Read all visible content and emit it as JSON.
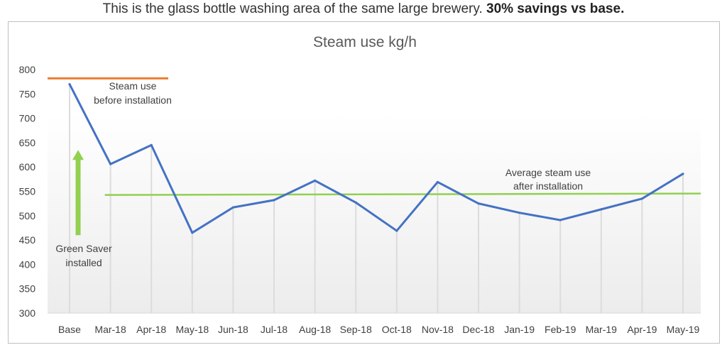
{
  "caption": {
    "text": "This is the glass bottle washing area of the same large brewery. ",
    "bold": "30% savings vs base."
  },
  "chart_data": {
    "type": "line",
    "title": "Steam use kg/h",
    "xlabel": "",
    "ylabel": "",
    "ylim": [
      300,
      800
    ],
    "yticks": [
      300,
      350,
      400,
      450,
      500,
      550,
      600,
      650,
      700,
      750,
      800
    ],
    "categories": [
      "Base",
      "Mar-18",
      "Apr-18",
      "May-18",
      "Jun-18",
      "Jul-18",
      "Aug-18",
      "Sep-18",
      "Oct-18",
      "Nov-18",
      "Dec-18",
      "Jan-19",
      "Feb-19",
      "Mar-19",
      "Apr-19",
      "May-19"
    ],
    "series": [
      {
        "values": [
          770,
          606,
          645,
          465,
          517,
          532,
          572,
          527,
          469,
          569,
          525,
          506,
          491,
          513,
          535,
          586
        ],
        "color": "#4472c4"
      }
    ],
    "reference_lines": [
      {
        "label_lines": [
          "Steam use",
          "before installation"
        ],
        "value": 782,
        "color": "#ed7d31",
        "from_category": "Base"
      },
      {
        "label_lines": [
          "Average steam use",
          "after installation"
        ],
        "value": 544,
        "color": "#92d050",
        "from_category": "Mar-18"
      }
    ],
    "annotations": [
      {
        "label_lines": [
          "Green Saver",
          "installed"
        ],
        "color": "#92d050",
        "arrow": "up",
        "from_value": 460,
        "to_value": 635
      }
    ],
    "grid": "vertical drop lines",
    "legend": "none"
  }
}
